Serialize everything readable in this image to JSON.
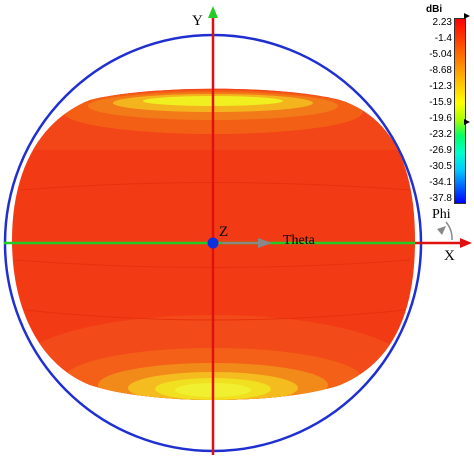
{
  "axes": {
    "x_label": "X",
    "y_label": "Y",
    "z_label": "Z",
    "theta_label": "Theta",
    "phi_label": "Phi"
  },
  "legend": {
    "unit": "dBi",
    "ticks": [
      "2.23",
      "-1.4",
      "-5.04",
      "-8.68",
      "-12.3",
      "-15.9",
      "-19.6",
      "-23.2",
      "-26.9",
      "-30.5",
      "-34.1",
      "-37.8"
    ],
    "colors": [
      "#ff0000",
      "#ff3300",
      "#ff6600",
      "#ff9900",
      "#ffcc00",
      "#ffff00",
      "#aaff00",
      "#00ff66",
      "#00ffcc",
      "#00ccff",
      "#0066ff",
      "#0000ff"
    ]
  },
  "colors": {
    "pattern_red": "#f23a14",
    "pattern_orange": "#f45f16",
    "pattern_yellow": "#f0f020",
    "x_axis_green": "#22cc22",
    "y_axis_red": "#e01010",
    "origin_blue": "#1030e0",
    "circle_blue": "#2030d0",
    "theta_gray": "#888888"
  }
}
